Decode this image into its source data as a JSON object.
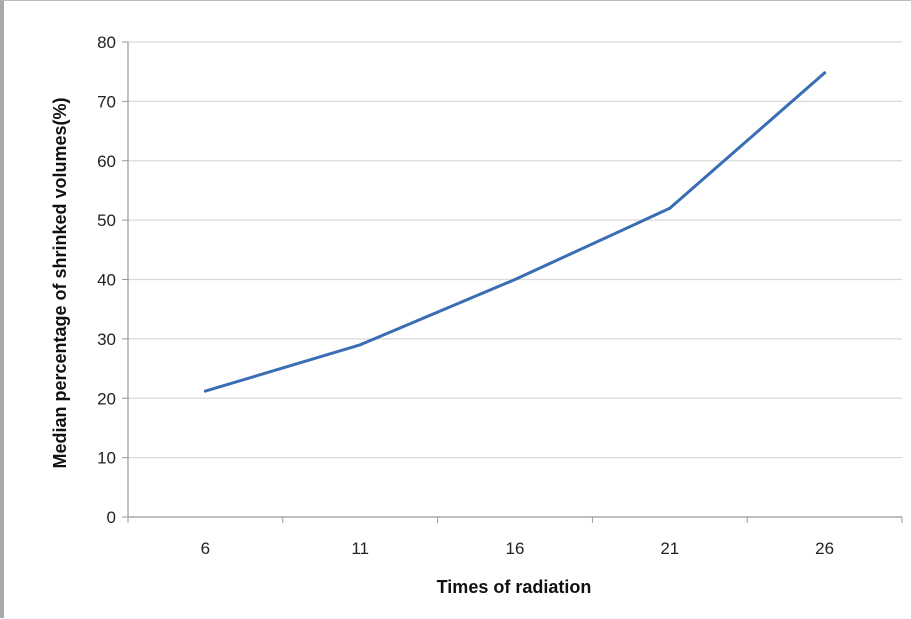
{
  "chart_data": {
    "type": "line",
    "title": "",
    "xlabel": "Times of radiation",
    "ylabel": "Median percentage of shrinked volumes(%)",
    "categories": [
      "6",
      "11",
      "16",
      "21",
      "26"
    ],
    "series": [
      {
        "values": [
          21.2,
          29.0,
          40.0,
          52.0,
          74.8
        ]
      }
    ],
    "ylim": [
      0,
      80
    ],
    "yticks": [
      0,
      10,
      20,
      30,
      40,
      50,
      60,
      70,
      80
    ],
    "grid": true,
    "legend": "none",
    "colors": {
      "line": "#3a6db4",
      "grid": "#d9d9d9",
      "axis": "#999999"
    }
  }
}
